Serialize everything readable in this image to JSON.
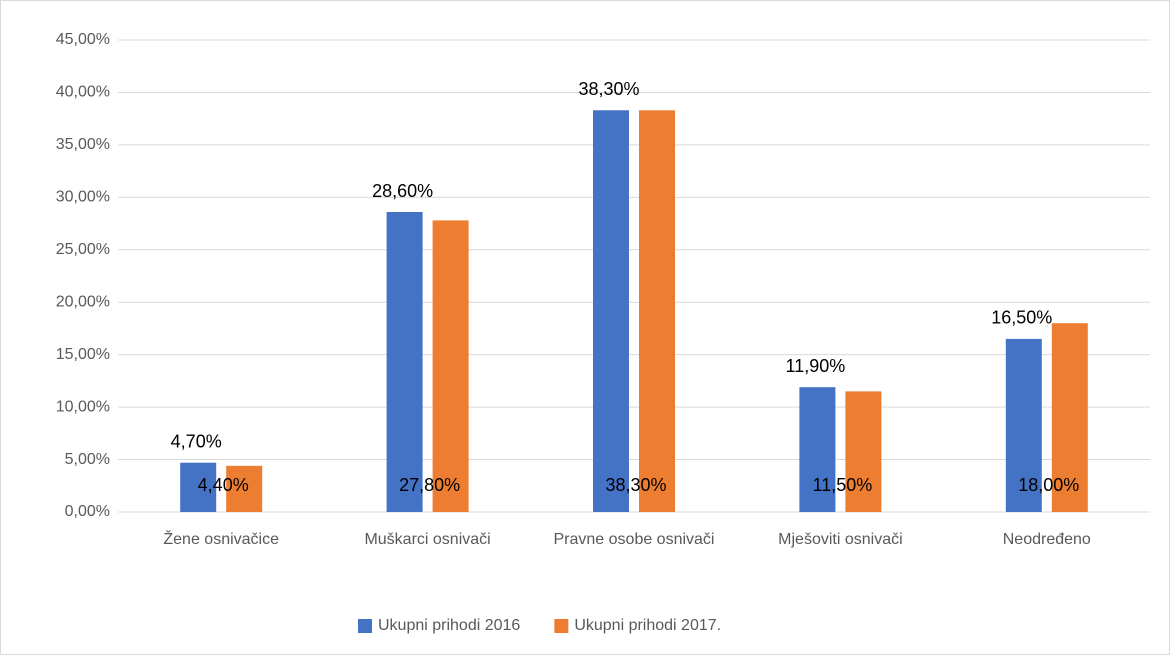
{
  "chart_data": {
    "type": "bar",
    "categories": [
      "Žene osnivačice",
      "Muškarci osnivači",
      "Pravne osobe osnivači",
      "Mješoviti osnivači",
      "Neodređeno"
    ],
    "series": [
      {
        "name": "Ukupni prihodi 2016",
        "color": "#4472c4",
        "values": [
          4.7,
          28.6,
          38.3,
          11.9,
          16.5
        ],
        "value_labels": [
          "4,70%",
          "28,60%",
          "38,30%",
          "11,90%",
          "16,50%"
        ]
      },
      {
        "name": "Ukupni prihodi 2017.",
        "color": "#ed7d31",
        "values": [
          4.4,
          27.8,
          38.3,
          11.5,
          18.0
        ],
        "value_labels": [
          "4,40%",
          "27,80%",
          "38,30%",
          "11,50%",
          "18,00%"
        ]
      }
    ],
    "ylim": [
      0,
      45
    ],
    "yticks": [
      {
        "value": 0,
        "label": "0,00%"
      },
      {
        "value": 5,
        "label": "5,00%"
      },
      {
        "value": 10,
        "label": "10,00%"
      },
      {
        "value": 15,
        "label": "15,00%"
      },
      {
        "value": 20,
        "label": "20,00%"
      },
      {
        "value": 25,
        "label": "25,00%"
      },
      {
        "value": 30,
        "label": "30,00%"
      },
      {
        "value": 35,
        "label": "35,00%"
      },
      {
        "value": 40,
        "label": "40,00%"
      },
      {
        "value": 45,
        "label": "45,00%"
      }
    ],
    "grid": true,
    "legend": "bottom"
  }
}
